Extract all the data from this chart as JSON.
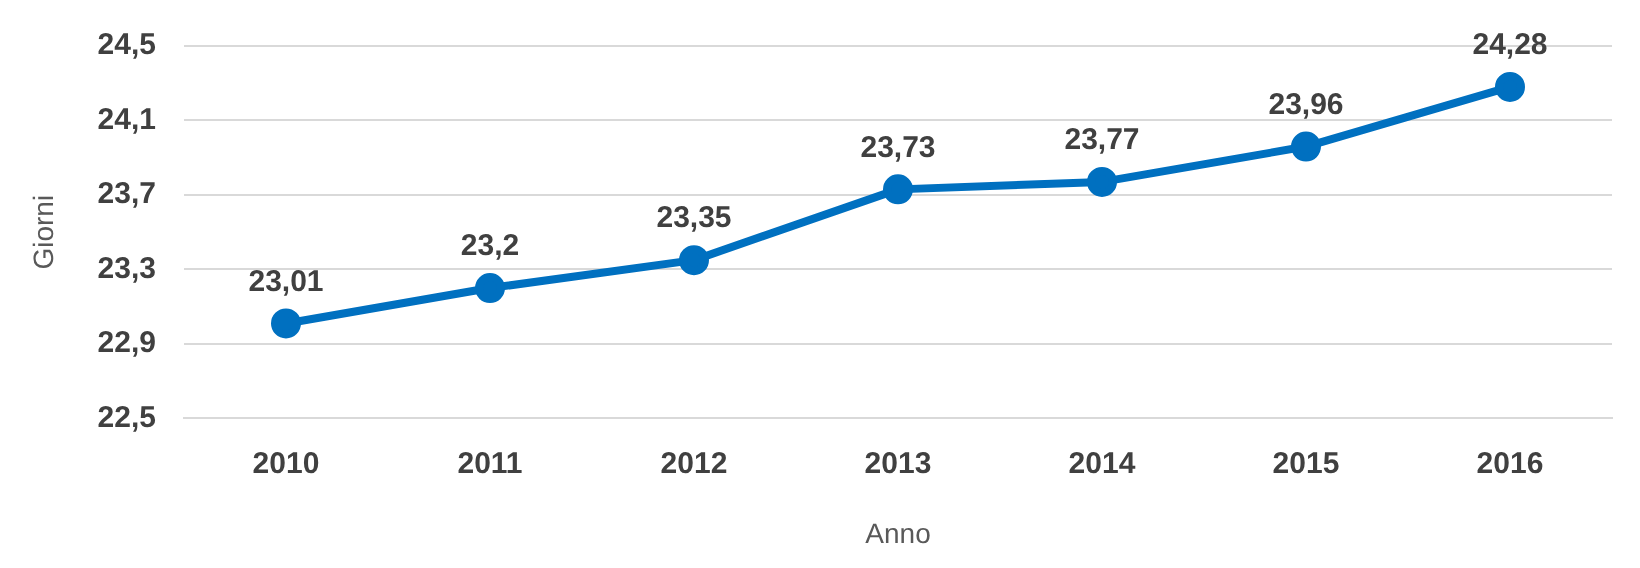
{
  "chart_data": {
    "type": "line",
    "xlabel": "Anno",
    "ylabel": "Giorni",
    "categories": [
      "2010",
      "2011",
      "2012",
      "2013",
      "2014",
      "2015",
      "2016"
    ],
    "series": [
      {
        "color": "#0070c0",
        "values": [
          23.01,
          23.2,
          23.35,
          23.73,
          23.77,
          23.96,
          24.28
        ],
        "value_labels": [
          "23,01",
          "23,2",
          "23,35",
          "23,73",
          "23,77",
          "23,96",
          "24,28"
        ]
      }
    ],
    "ylim": [
      22.5,
      24.5
    ],
    "yticks": [
      {
        "value": 22.5,
        "label": "22,5"
      },
      {
        "value": 22.9,
        "label": "22,9"
      },
      {
        "value": 23.3,
        "label": "23,3"
      },
      {
        "value": 23.7,
        "label": "23,7"
      },
      {
        "value": 24.1,
        "label": "24,1"
      },
      {
        "value": 24.5,
        "label": "24,5"
      }
    ],
    "grid": "y",
    "legend": false,
    "marker": "circle",
    "line_style": "solid"
  }
}
